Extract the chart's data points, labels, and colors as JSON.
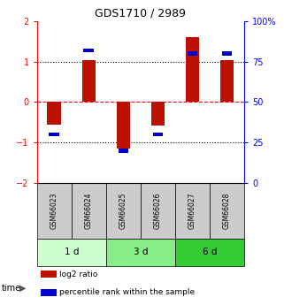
{
  "title": "GDS1710 / 2989",
  "samples": [
    "GSM66023",
    "GSM66024",
    "GSM66025",
    "GSM66026",
    "GSM66027",
    "GSM66028"
  ],
  "log2_ratio": [
    -0.55,
    1.05,
    -1.15,
    -0.58,
    1.62,
    1.05
  ],
  "percentile_rank": [
    30,
    82,
    20,
    30,
    80,
    80
  ],
  "ylim_left": [
    -2,
    2
  ],
  "ylim_right": [
    0,
    100
  ],
  "yticks_left": [
    -2,
    -1,
    0,
    1,
    2
  ],
  "yticks_right": [
    0,
    25,
    50,
    75,
    100
  ],
  "ytick_labels_right": [
    "0",
    "25",
    "50",
    "75",
    "100%"
  ],
  "bar_color_red": "#bb1100",
  "bar_color_blue": "#0000cc",
  "groups": [
    {
      "label": "1 d",
      "n_samples": 2,
      "color": "#ccffcc"
    },
    {
      "label": "3 d",
      "n_samples": 2,
      "color": "#88ee88"
    },
    {
      "label": "6 d",
      "n_samples": 2,
      "color": "#33cc33"
    }
  ],
  "legend_items": [
    {
      "label": "log2 ratio",
      "color": "#bb1100"
    },
    {
      "label": "percentile rank within the sample",
      "color": "#0000cc"
    }
  ],
  "left_axis_color": "red",
  "right_axis_color": "blue",
  "bar_width": 0.4,
  "blue_bar_height": 0.1,
  "sample_bg_color": "#cccccc",
  "title_fontsize": 9
}
